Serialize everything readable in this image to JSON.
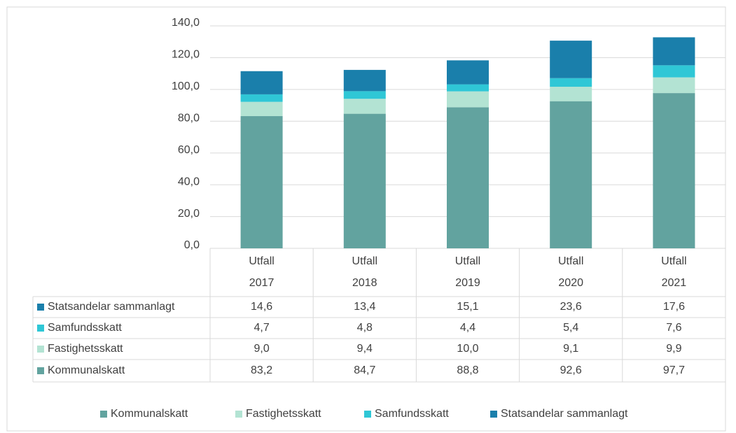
{
  "chart_data": {
    "type": "bar",
    "stacked": true,
    "categories": [
      "Utfall 2017",
      "Utfall 2018",
      "Utfall 2019",
      "Utfall 2020",
      "Utfall 2021"
    ],
    "series": [
      {
        "name": "Kommunalskatt",
        "color": "#62a39f",
        "values": [
          83.2,
          84.7,
          88.8,
          92.6,
          97.7
        ],
        "value_labels": [
          "83,2",
          "84,7",
          "88,8",
          "92,6",
          "97,7"
        ]
      },
      {
        "name": "Fastighetsskatt",
        "color": "#b3e3d3",
        "values": [
          9.0,
          9.4,
          10.0,
          9.1,
          9.9
        ],
        "value_labels": [
          "9,0",
          "9,4",
          "10,0",
          "9,1",
          "9,9"
        ]
      },
      {
        "name": "Samfundsskatt",
        "color": "#2fc7d6",
        "values": [
          4.7,
          4.8,
          4.4,
          5.4,
          7.6
        ],
        "value_labels": [
          "4,7",
          "4,8",
          "4,4",
          "5,4",
          "7,6"
        ]
      },
      {
        "name": "Statsandelar sammanlagt",
        "color": "#1a7fab",
        "values": [
          14.6,
          13.4,
          15.1,
          23.6,
          17.6
        ],
        "value_labels": [
          "14,6",
          "13,4",
          "15,1",
          "23,6",
          "17,6"
        ]
      }
    ],
    "ylim": [
      0,
      140
    ],
    "yticks": [
      {
        "value": 0,
        "label": "0,0"
      },
      {
        "value": 20,
        "label": "20,0"
      },
      {
        "value": 40,
        "label": "40,0"
      },
      {
        "value": 60,
        "label": "60,0"
      },
      {
        "value": 80,
        "label": "80,0"
      },
      {
        "value": 100,
        "label": "100,0"
      },
      {
        "value": 120,
        "label": "120,0"
      },
      {
        "value": 140,
        "label": "140,0"
      }
    ],
    "grid": true,
    "legend": "bottom",
    "data_table": true
  }
}
